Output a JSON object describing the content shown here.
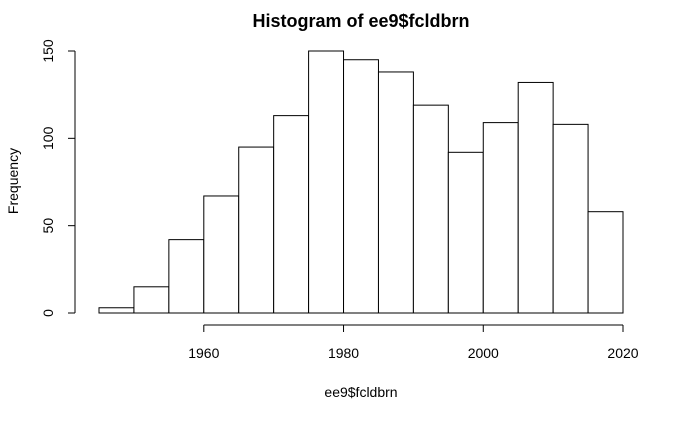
{
  "chart_data": {
    "type": "bar",
    "title": "Histogram of ee9$fcldbrn",
    "xlabel": "ee9$fcldbrn",
    "ylabel": "Frequency",
    "bins": [
      [
        1945,
        1950
      ],
      [
        1950,
        1955
      ],
      [
        1955,
        1960
      ],
      [
        1960,
        1965
      ],
      [
        1965,
        1970
      ],
      [
        1970,
        1975
      ],
      [
        1975,
        1980
      ],
      [
        1980,
        1985
      ],
      [
        1985,
        1990
      ],
      [
        1990,
        1995
      ],
      [
        1995,
        2000
      ],
      [
        2000,
        2005
      ],
      [
        2005,
        2010
      ],
      [
        2010,
        2015
      ],
      [
        2015,
        2020
      ]
    ],
    "values": [
      3,
      15,
      42,
      67,
      95,
      113,
      150,
      145,
      138,
      119,
      92,
      109,
      132,
      108,
      58
    ],
    "xlim": [
      1945,
      2020
    ],
    "ylim": [
      0,
      150
    ],
    "x_ticks": [
      "1960",
      "1980",
      "2000",
      "2020"
    ],
    "y_ticks": [
      "0",
      "50",
      "100",
      "150"
    ],
    "grid": false,
    "legend": "none"
  }
}
